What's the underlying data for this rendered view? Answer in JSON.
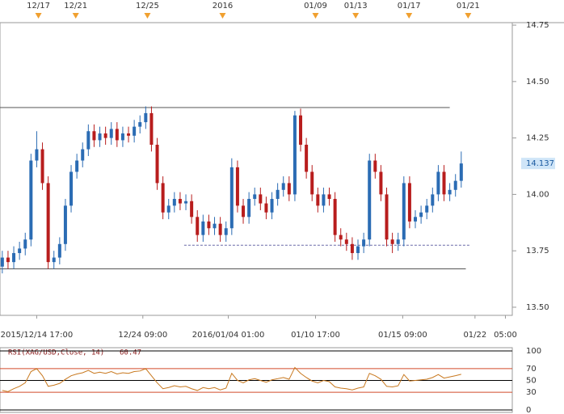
{
  "chart_data": [
    {
      "type": "candlestick",
      "x": [
        0,
        1,
        2,
        3,
        4,
        5,
        6,
        7,
        8,
        9,
        10,
        11,
        12,
        13,
        14,
        15,
        16,
        17,
        18,
        19,
        20,
        21,
        22,
        23,
        24,
        25,
        26,
        27,
        28,
        29,
        30,
        31,
        32,
        33,
        34,
        35,
        36,
        37,
        38,
        39,
        40,
        41,
        42,
        43,
        44,
        45,
        46,
        47,
        48,
        49,
        50,
        51,
        52,
        53,
        54,
        55,
        56,
        57,
        58,
        59,
        60,
        61,
        62,
        63,
        64,
        65,
        66,
        67,
        68,
        69,
        70,
        71,
        72,
        73,
        74,
        75,
        76,
        77,
        78,
        79,
        80
      ],
      "open": [
        13.68,
        13.72,
        13.7,
        13.74,
        13.76,
        13.8,
        14.15,
        14.2,
        14.05,
        13.7,
        13.72,
        13.78,
        13.95,
        14.1,
        14.15,
        14.2,
        14.28,
        14.24,
        14.27,
        14.25,
        14.29,
        14.24,
        14.27,
        14.26,
        14.3,
        14.32,
        14.36,
        14.22,
        14.05,
        13.92,
        13.95,
        13.98,
        13.96,
        13.97,
        13.9,
        13.82,
        13.88,
        13.85,
        13.87,
        13.82,
        13.85,
        14.12,
        13.95,
        13.9,
        13.98,
        14.0,
        13.96,
        13.92,
        13.98,
        14.02,
        14.05,
        14.0,
        14.35,
        14.22,
        14.1,
        14.0,
        13.95,
        14.0,
        13.98,
        13.82,
        13.8,
        13.78,
        13.74,
        13.77,
        13.8,
        14.15,
        14.1,
        14.0,
        13.8,
        13.78,
        13.8,
        14.05,
        13.88,
        13.9,
        13.92,
        13.95,
        14.0,
        14.1,
        14.0,
        14.02,
        14.06
      ],
      "high": [
        13.75,
        13.75,
        13.77,
        13.79,
        13.83,
        14.18,
        14.28,
        14.23,
        14.08,
        13.75,
        13.81,
        13.98,
        14.13,
        14.18,
        14.23,
        14.31,
        14.31,
        14.3,
        14.3,
        14.32,
        14.32,
        14.3,
        14.3,
        14.33,
        14.35,
        14.39,
        14.39,
        14.25,
        14.08,
        13.98,
        14.01,
        14.01,
        14.0,
        14.0,
        13.93,
        13.91,
        13.91,
        13.9,
        13.9,
        13.88,
        14.16,
        14.15,
        13.98,
        14.01,
        14.03,
        14.03,
        13.99,
        14.01,
        14.05,
        14.08,
        14.08,
        14.37,
        14.38,
        14.25,
        14.13,
        14.03,
        14.03,
        14.03,
        14.01,
        13.85,
        13.83,
        13.81,
        13.8,
        13.83,
        14.18,
        14.18,
        14.13,
        14.03,
        13.83,
        13.83,
        14.08,
        14.08,
        13.93,
        13.95,
        13.98,
        14.03,
        14.13,
        14.13,
        14.05,
        14.09,
        14.19
      ],
      "low": [
        13.65,
        13.67,
        13.67,
        13.71,
        13.73,
        13.77,
        14.12,
        14.02,
        13.67,
        13.67,
        13.69,
        13.75,
        13.92,
        14.07,
        14.12,
        14.17,
        14.21,
        14.21,
        14.22,
        14.22,
        14.21,
        14.21,
        14.23,
        14.23,
        14.27,
        14.29,
        14.19,
        14.02,
        13.89,
        13.89,
        13.92,
        13.93,
        13.93,
        13.87,
        13.79,
        13.79,
        13.82,
        13.82,
        13.79,
        13.79,
        13.82,
        13.92,
        13.87,
        13.87,
        13.95,
        13.93,
        13.89,
        13.89,
        13.95,
        13.99,
        13.97,
        13.97,
        14.19,
        14.07,
        13.97,
        13.92,
        13.92,
        13.95,
        13.79,
        13.77,
        13.75,
        13.71,
        13.71,
        13.74,
        13.77,
        14.07,
        13.97,
        13.77,
        13.74,
        13.75,
        13.77,
        13.85,
        13.85,
        13.87,
        13.89,
        13.92,
        13.97,
        13.97,
        13.97,
        13.99,
        14.03
      ],
      "close": [
        13.72,
        13.7,
        13.74,
        13.76,
        13.8,
        14.15,
        14.2,
        14.05,
        13.7,
        13.72,
        13.78,
        13.95,
        14.1,
        14.15,
        14.2,
        14.28,
        14.24,
        14.27,
        14.25,
        14.29,
        14.24,
        14.27,
        14.26,
        14.3,
        14.32,
        14.36,
        14.22,
        14.05,
        13.92,
        13.95,
        13.98,
        13.96,
        13.97,
        13.9,
        13.82,
        13.88,
        13.85,
        13.87,
        13.82,
        13.85,
        14.12,
        13.95,
        13.9,
        13.98,
        14.0,
        13.96,
        13.92,
        13.98,
        14.02,
        14.05,
        14.0,
        14.35,
        14.22,
        14.1,
        14.0,
        13.95,
        14.0,
        13.98,
        13.82,
        13.8,
        13.78,
        13.74,
        13.77,
        13.8,
        14.15,
        14.1,
        14.0,
        13.8,
        13.78,
        13.8,
        14.05,
        13.88,
        13.9,
        13.92,
        13.95,
        14.0,
        14.1,
        14.0,
        14.02,
        14.06,
        14.137
      ],
      "up_color": "#2b6cb4",
      "down_color": "#b81d1d",
      "xlim": [
        -0.4,
        88.9
      ],
      "ylim": [
        13.464,
        14.761
      ],
      "yticks": [
        {
          "value": 13.5,
          "label": "13.50"
        },
        13.75,
        {
          "value": 14.0,
          "label": "14.00"
        },
        14.25,
        {
          "value": 14.5,
          "label": "14.50"
        },
        14.75
      ],
      "xticks": [
        {
          "value": 6,
          "label": "2015/12/14 17:00"
        },
        {
          "value": 24.5,
          "label": "12/24 09:00"
        },
        {
          "value": 39.4,
          "label": "2016/01/04 01:00"
        },
        {
          "value": 54.6,
          "label": "01/10 17:00"
        },
        {
          "value": 69.8,
          "label": "01/15 09:00"
        },
        {
          "value": 82.4,
          "label": "01/22"
        },
        {
          "value": 87.7,
          "label": "05:00"
        }
      ],
      "events": [
        {
          "value": 6.3,
          "label": "12/17"
        },
        {
          "value": 12.8,
          "label": "12/21"
        },
        {
          "value": 25.3,
          "label": "12/25"
        },
        {
          "value": 38.4,
          "label": "2016"
        },
        {
          "value": 54.6,
          "label": "01/09"
        },
        {
          "value": 61.6,
          "label": "01/13"
        },
        {
          "value": 70.9,
          "label": "01/17"
        },
        {
          "value": 81.2,
          "label": "01/21"
        }
      ],
      "hlines": [
        {
          "value": 14.385,
          "x": [
            -0.4,
            78
          ],
          "style": "solid"
        },
        {
          "value": 13.67,
          "x": [
            -0.4,
            80.8
          ],
          "style": "solid"
        },
        {
          "value": 13.775,
          "x": [
            31.7,
            81.5
          ],
          "style": "dashed"
        }
      ]
    },
    {
      "type": "line",
      "title": "RSI(XAG/USD,Close, 14)",
      "last_value": 60.47,
      "color": "#c8781e",
      "values": [
        33,
        31,
        36,
        40,
        46,
        65,
        70,
        58,
        40,
        42,
        45,
        52,
        58,
        61,
        63,
        67,
        62,
        64,
        62,
        65,
        61,
        63,
        62,
        65,
        66,
        70,
        58,
        46,
        36,
        38,
        41,
        39,
        40,
        36,
        33,
        38,
        36,
        38,
        34,
        37,
        62,
        50,
        46,
        51,
        53,
        50,
        47,
        51,
        53,
        55,
        52,
        72,
        62,
        55,
        49,
        46,
        50,
        48,
        39,
        37,
        36,
        34,
        37,
        39,
        62,
        58,
        52,
        40,
        39,
        41,
        60,
        49,
        50,
        51,
        52,
        55,
        60,
        54,
        56,
        58,
        60.47
      ],
      "ylim": [
        0,
        100
      ],
      "yticks": [
        0,
        30,
        50,
        70,
        100
      ],
      "ytick_colors": [
        "#000000",
        "#d24a2a",
        "#000000",
        "#d24a2a",
        "#000000"
      ]
    }
  ]
}
